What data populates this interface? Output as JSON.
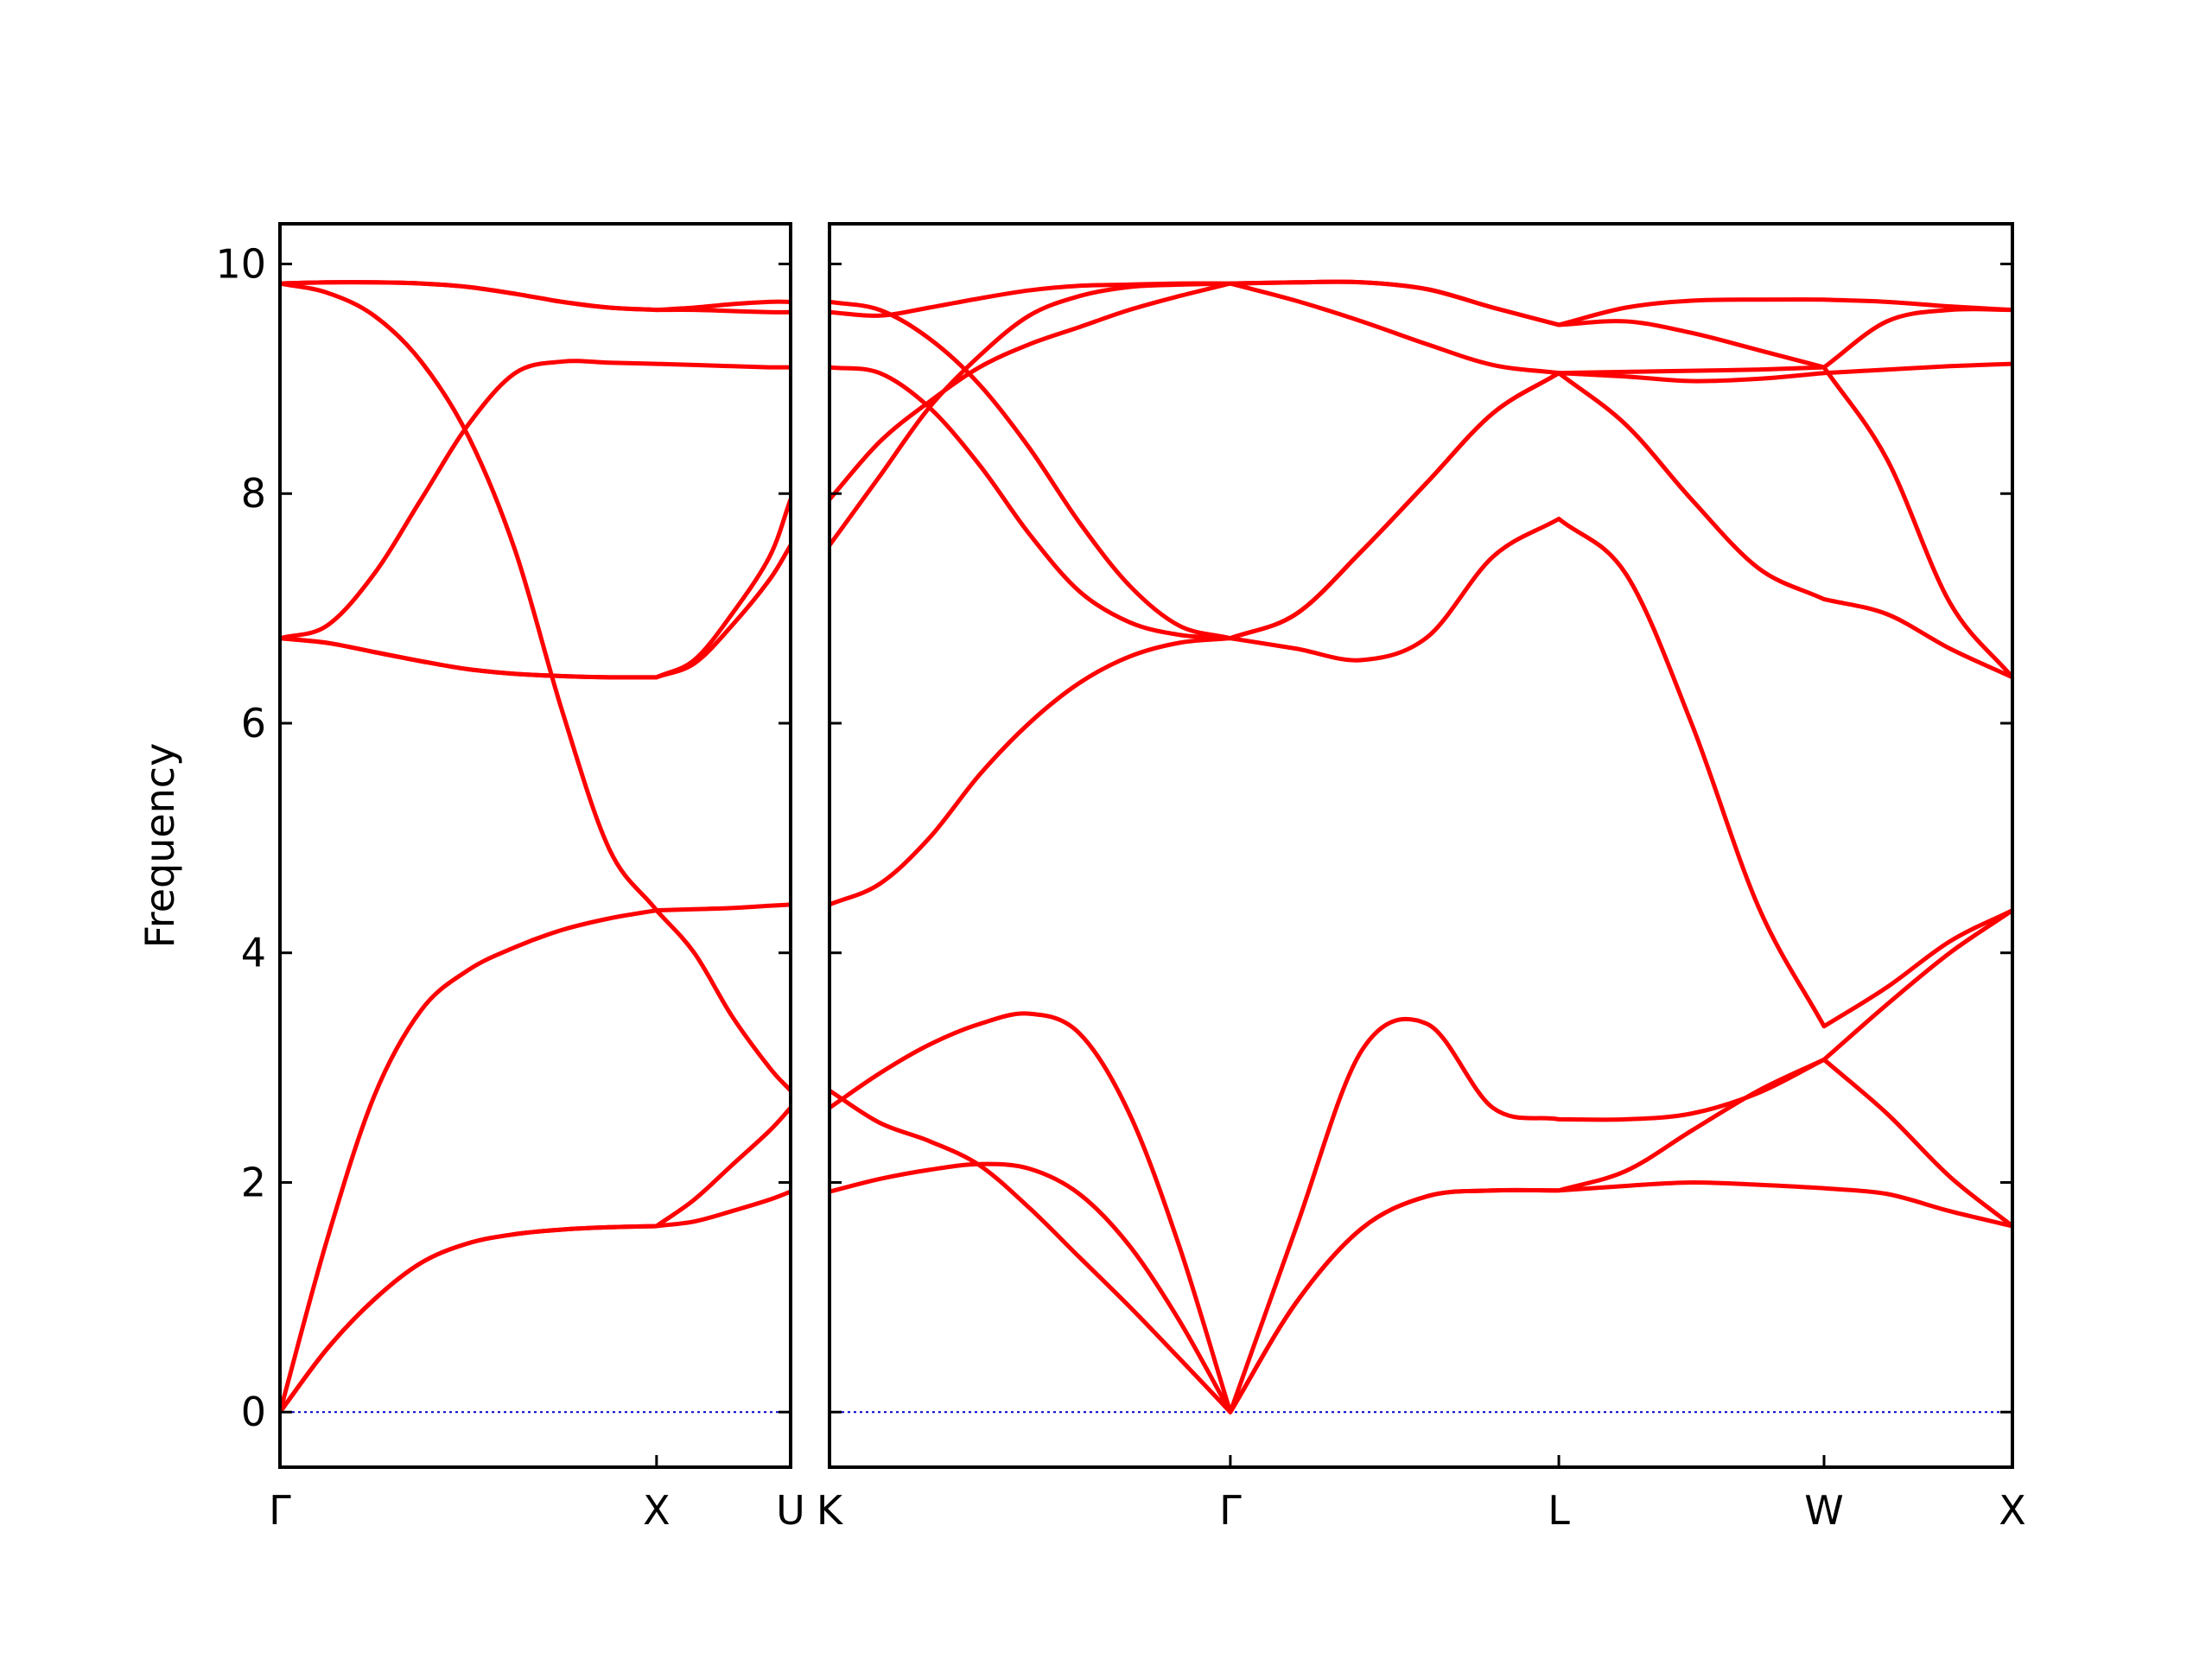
{
  "chart_data": [
    {
      "type": "line",
      "ylabel": "Frequency",
      "line_color": "#ff0000",
      "hline": {
        "value": 0,
        "color": "#0000cc",
        "style": "dotted"
      },
      "xlim": [
        0,
        1.356
      ],
      "ylim": [
        -0.48,
        10.35
      ],
      "ytick_labels": true,
      "xticks": [
        {
          "value": 0,
          "label": "Γ"
        },
        {
          "value": 1,
          "label": "X"
        },
        {
          "value": 1.356,
          "label": "U"
        }
      ],
      "yticks": [
        0,
        2,
        4,
        6,
        8,
        10
      ],
      "x": [
        0,
        0.125,
        0.25,
        0.375,
        0.5,
        0.625,
        0.75,
        0.875,
        1,
        1.1,
        1.2,
        1.3,
        1.356
      ],
      "series": [
        {
          "values": [
            0,
            0.55,
            0.98,
            1.3,
            1.47,
            1.55,
            1.59,
            1.61,
            1.62,
            1.66,
            1.75,
            1.85,
            1.92
          ]
        },
        {
          "values": [
            0,
            0.55,
            0.98,
            1.3,
            1.47,
            1.55,
            1.59,
            1.61,
            1.62,
            1.85,
            2.15,
            2.45,
            2.65
          ]
        },
        {
          "values": [
            0,
            1.5,
            2.75,
            3.5,
            3.85,
            4.05,
            4.2,
            4.3,
            4.37,
            4.38,
            4.39,
            4.41,
            4.42
          ]
        },
        {
          "values": [
            9.83,
            9.75,
            9.55,
            9.15,
            8.5,
            7.5,
            6.1,
            4.9,
            4.37,
            4.0,
            3.45,
            3.0,
            2.8
          ]
        },
        {
          "values": [
            9.83,
            9.84,
            9.84,
            9.83,
            9.8,
            9.74,
            9.67,
            9.62,
            9.6,
            9.62,
            9.65,
            9.67,
            9.67
          ]
        },
        {
          "values": [
            9.83,
            9.84,
            9.84,
            9.83,
            9.8,
            9.74,
            9.67,
            9.62,
            9.6,
            9.6,
            9.59,
            9.58,
            9.58
          ]
        },
        {
          "values": [
            6.74,
            6.7,
            6.62,
            6.54,
            6.47,
            6.43,
            6.41,
            6.4,
            6.4,
            6.52,
            6.85,
            7.25,
            7.55
          ]
        },
        {
          "values": [
            6.74,
            6.7,
            6.62,
            6.54,
            6.47,
            6.43,
            6.41,
            6.4,
            6.4,
            6.55,
            6.95,
            7.45,
            7.95
          ]
        },
        {
          "values": [
            6.74,
            6.85,
            7.3,
            7.95,
            8.6,
            9.05,
            9.15,
            9.14,
            9.13,
            9.12,
            9.11,
            9.1,
            9.1
          ]
        }
      ]
    },
    {
      "type": "line",
      "line_color": "#ff0000",
      "hline": {
        "value": 0,
        "color": "#0000cc",
        "style": "dotted"
      },
      "xlim": [
        1.356,
        4.496
      ],
      "ylim": [
        -0.48,
        10.35
      ],
      "ytick_labels": false,
      "xticks": [
        {
          "value": 1.356,
          "label": "K"
        },
        {
          "value": 2.42,
          "label": "Γ"
        },
        {
          "value": 3.292,
          "label": "L"
        },
        {
          "value": 3.996,
          "label": "W"
        },
        {
          "value": 4.496,
          "label": "X"
        }
      ],
      "yticks": [
        0,
        2,
        4,
        6,
        8,
        10
      ],
      "x": [
        1.356,
        1.489,
        1.621,
        1.754,
        1.886,
        2.019,
        2.152,
        2.284,
        2.42,
        2.594,
        2.769,
        2.943,
        3.117,
        3.292,
        3.47,
        3.644,
        3.822,
        3.996,
        4.163,
        4.33,
        4.496
      ],
      "series": [
        {
          "values": [
            1.92,
            2.03,
            2.11,
            2.16,
            2.12,
            1.9,
            1.45,
            0.8,
            0,
            0.95,
            1.6,
            1.88,
            1.93,
            1.93,
            1.97,
            2.0,
            1.98,
            1.95,
            1.9,
            1.75,
            1.62
          ]
        },
        {
          "values": [
            2.8,
            2.52,
            2.36,
            2.15,
            1.78,
            1.35,
            0.92,
            0.47,
            0,
            0.95,
            1.6,
            1.88,
            1.93,
            1.93,
            2.1,
            2.45,
            2.8,
            3.07,
            2.6,
            2.05,
            1.62
          ]
        },
        {
          "values": [
            2.65,
            2.95,
            3.2,
            3.38,
            3.47,
            3.3,
            2.6,
            1.45,
            0,
            1.6,
            3.15,
            3.38,
            2.65,
            2.55,
            2.55,
            2.6,
            2.78,
            3.07,
            3.55,
            4.0,
            4.37
          ]
        },
        {
          "values": [
            4.42,
            4.6,
            5.0,
            5.55,
            6.0,
            6.35,
            6.58,
            6.7,
            6.74,
            6.65,
            6.55,
            6.75,
            7.45,
            7.78,
            7.3,
            6.0,
            4.4,
            3.36,
            3.7,
            4.1,
            4.37
          ]
        },
        {
          "values": [
            9.67,
            9.6,
            9.35,
            8.95,
            8.4,
            7.75,
            7.2,
            6.85,
            6.74,
            6.95,
            7.5,
            8.1,
            8.7,
            9.05,
            8.6,
            7.95,
            7.35,
            7.08,
            6.95,
            6.65,
            6.4
          ]
        },
        {
          "values": [
            9.1,
            9.05,
            8.75,
            8.25,
            7.65,
            7.15,
            6.88,
            6.77,
            6.74,
            6.95,
            7.5,
            8.1,
            8.7,
            9.05,
            9.02,
            8.98,
            9.0,
            9.05,
            9.08,
            9.11,
            9.13
          ]
        },
        {
          "values": [
            9.58,
            9.55,
            9.62,
            9.7,
            9.77,
            9.81,
            9.82,
            9.83,
            9.83,
            9.68,
            9.5,
            9.3,
            9.12,
            9.05,
            9.06,
            9.07,
            9.08,
            9.1,
            9.5,
            9.6,
            9.6
          ]
        },
        {
          "values": [
            7.95,
            8.45,
            8.8,
            9.1,
            9.3,
            9.45,
            9.6,
            9.72,
            9.83,
            9.84,
            9.84,
            9.78,
            9.62,
            9.47,
            9.5,
            9.4,
            9.25,
            9.1,
            8.3,
            7.05,
            6.4
          ]
        },
        {
          "values": [
            7.55,
            8.15,
            8.75,
            9.2,
            9.55,
            9.72,
            9.8,
            9.82,
            9.83,
            9.84,
            9.84,
            9.78,
            9.62,
            9.47,
            9.62,
            9.68,
            9.69,
            9.69,
            9.67,
            9.63,
            9.6
          ]
        }
      ]
    }
  ]
}
